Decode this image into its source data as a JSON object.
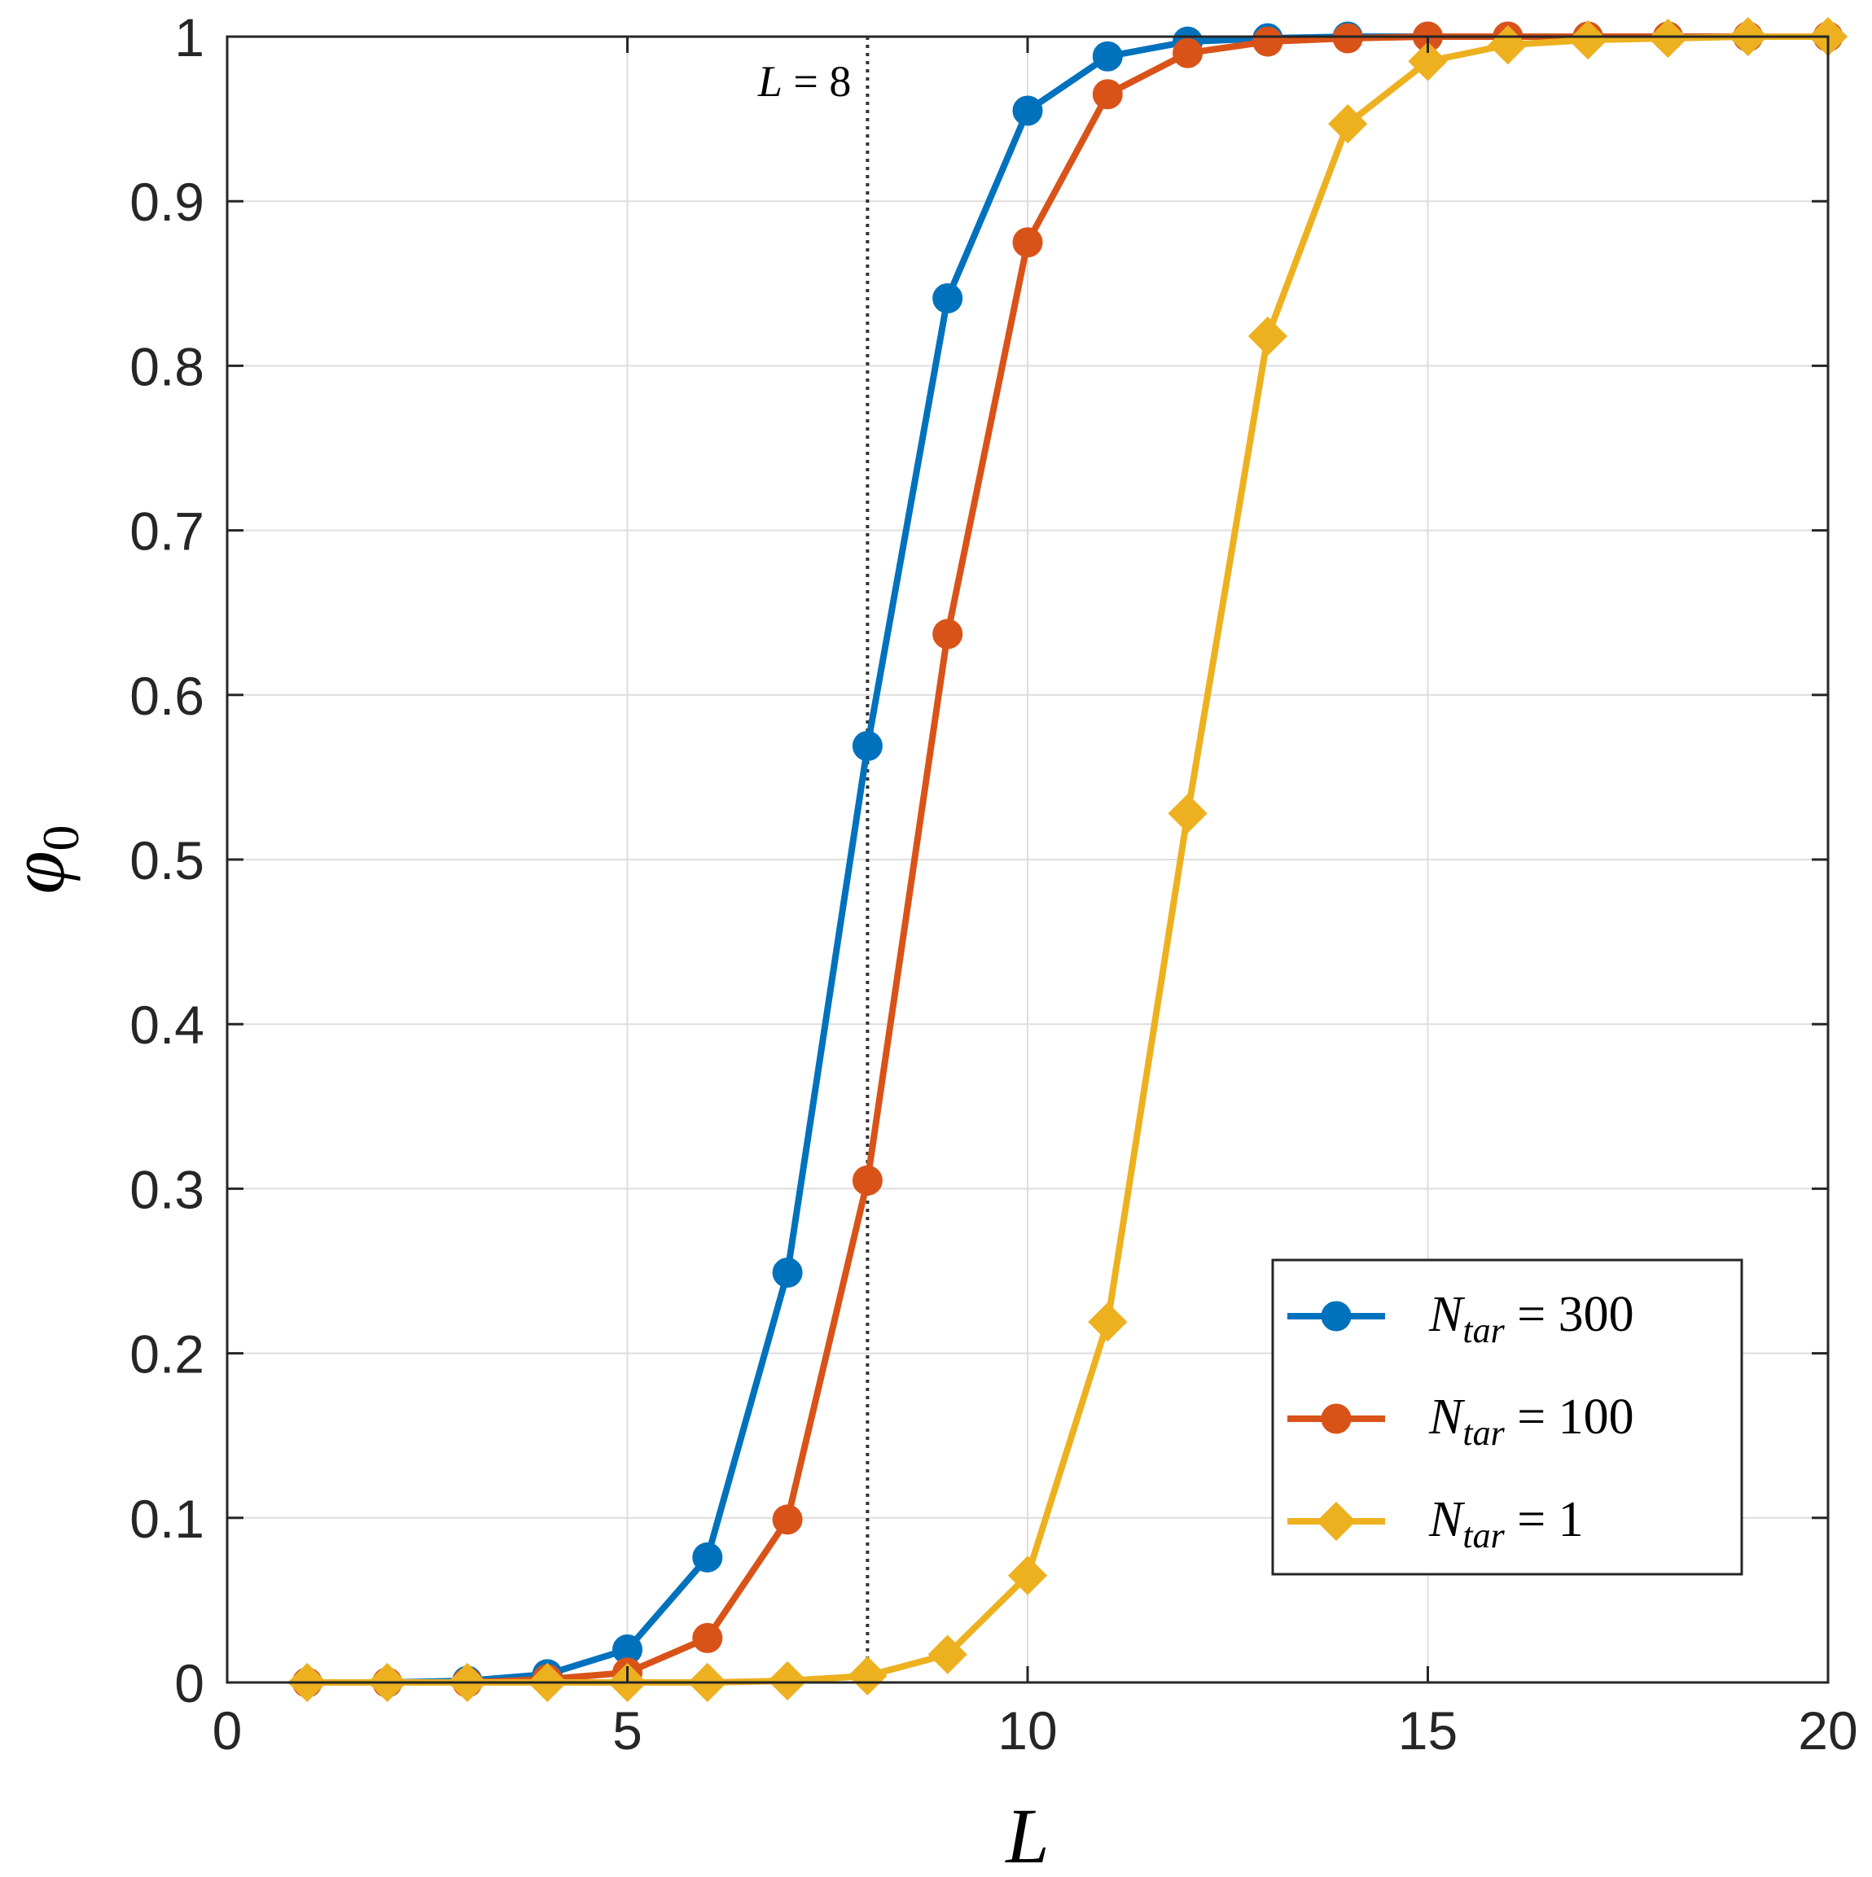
{
  "chart_data": {
    "type": "line",
    "title": "",
    "xlabel": "L",
    "ylabel": "φ",
    "ylabel_sub": "0",
    "xlim": [
      0,
      20
    ],
    "ylim": [
      0,
      1
    ],
    "xticks": [
      0,
      5,
      10,
      15,
      20
    ],
    "yticks": [
      0,
      0.1,
      0.2,
      0.3,
      0.4,
      0.5,
      0.6,
      0.7,
      0.8,
      0.9,
      1
    ],
    "xtick_labels": [
      "0",
      "5",
      "10",
      "15",
      "20"
    ],
    "ytick_labels": [
      "0",
      "0.1",
      "0.2",
      "0.3",
      "0.4",
      "0.5",
      "0.6",
      "0.7",
      "0.8",
      "0.9",
      "1"
    ],
    "grid": true,
    "legend_position": "bottom-right",
    "x": [
      1,
      2,
      3,
      4,
      5,
      6,
      7,
      8,
      9,
      10,
      11,
      12,
      13,
      14,
      15,
      16,
      17,
      18,
      19,
      20
    ],
    "series": [
      {
        "name": "N_tar = 300",
        "label_main": "N",
        "label_sub": "tar",
        "label_rest": "= 300",
        "color": "#0072BD",
        "marker": "circle",
        "values": [
          0,
          0,
          0.001,
          0.005,
          0.02,
          0.076,
          0.249,
          0.569,
          0.841,
          0.955,
          0.988,
          0.997,
          0.999,
          1,
          1,
          1,
          1,
          1,
          1,
          1
        ]
      },
      {
        "name": "N_tar = 100",
        "label_main": "N",
        "label_sub": "tar",
        "label_rest": "= 100",
        "color": "#D95319",
        "marker": "circle",
        "values": [
          0,
          0,
          0,
          0.002,
          0.006,
          0.027,
          0.099,
          0.305,
          0.637,
          0.875,
          0.965,
          0.99,
          0.997,
          0.999,
          1,
          1,
          1,
          1,
          1,
          1
        ]
      },
      {
        "name": "N_tar = 1",
        "label_main": "N",
        "label_sub": "tar",
        "label_rest": "= 1",
        "color": "#EDB120",
        "marker": "diamond",
        "values": [
          0,
          0,
          0,
          0,
          0,
          0,
          0.001,
          0.004,
          0.017,
          0.065,
          0.219,
          0.528,
          0.818,
          0.947,
          0.985,
          0.995,
          0.998,
          0.999,
          1,
          1
        ]
      }
    ],
    "annotations": [
      {
        "type": "vline",
        "x": 8,
        "style": "dotted",
        "color": "#333333",
        "label_main": "L",
        "label_rest": "= 8"
      }
    ]
  }
}
